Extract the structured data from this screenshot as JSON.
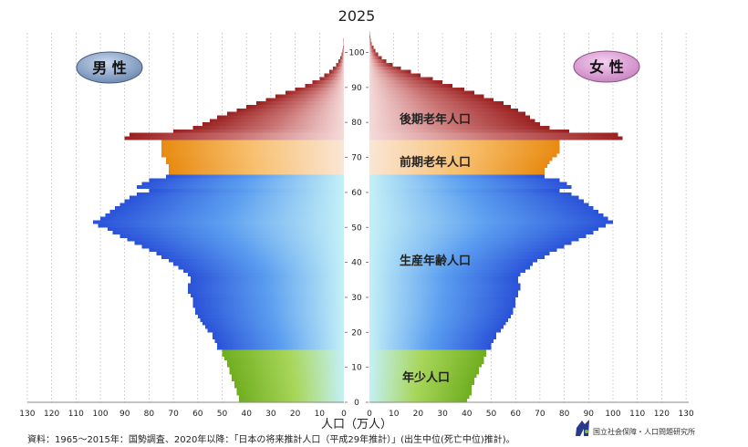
{
  "chart_data": {
    "type": "population-pyramid",
    "title": "2025",
    "xlabel": "人口（万人）",
    "x_ticks": [
      130,
      120,
      110,
      100,
      90,
      80,
      70,
      60,
      50,
      40,
      30,
      20,
      10,
      0
    ],
    "y_ticks": [
      0,
      10,
      20,
      30,
      40,
      50,
      60,
      70,
      80,
      90,
      100
    ],
    "xlim": [
      0,
      130
    ],
    "ylim": [
      0,
      105
    ],
    "male_label": "男 性",
    "female_label": "女 性",
    "age_groups": [
      {
        "name": "年少人口",
        "min_age": 0,
        "max_age": 14,
        "color": "#8cc63f"
      },
      {
        "name": "生産年齢人口",
        "min_age": 15,
        "max_age": 64,
        "color": "#3366ee"
      },
      {
        "name": "前期老年人口",
        "min_age": 65,
        "max_age": 74,
        "color": "#f0a030"
      },
      {
        "name": "後期老年人口",
        "min_age": 75,
        "max_age": 105,
        "color": "#a83232"
      }
    ],
    "ages": [
      0,
      1,
      2,
      3,
      4,
      5,
      6,
      7,
      8,
      9,
      10,
      11,
      12,
      13,
      14,
      15,
      16,
      17,
      18,
      19,
      20,
      21,
      22,
      23,
      24,
      25,
      26,
      27,
      28,
      29,
      30,
      31,
      32,
      33,
      34,
      35,
      36,
      37,
      38,
      39,
      40,
      41,
      42,
      43,
      44,
      45,
      46,
      47,
      48,
      49,
      50,
      51,
      52,
      53,
      54,
      55,
      56,
      57,
      58,
      59,
      60,
      61,
      62,
      63,
      64,
      65,
      66,
      67,
      68,
      69,
      70,
      71,
      72,
      73,
      74,
      75,
      76,
      77,
      78,
      79,
      80,
      81,
      82,
      83,
      84,
      85,
      86,
      87,
      88,
      89,
      90,
      91,
      92,
      93,
      94,
      95,
      96,
      97,
      98,
      99,
      100,
      101,
      102,
      103,
      104,
      105
    ],
    "male": [
      43,
      43,
      44,
      44,
      45,
      45,
      46,
      46,
      47,
      47,
      48,
      48,
      49,
      50,
      50,
      52,
      52,
      53,
      54,
      54,
      56,
      57,
      58,
      59,
      60,
      61,
      61,
      62,
      62,
      62,
      63,
      64,
      64,
      64,
      63,
      63,
      64,
      66,
      68,
      70,
      72,
      75,
      77,
      80,
      83,
      86,
      89,
      92,
      95,
      97,
      101,
      103,
      100,
      98,
      96,
      94,
      92,
      90,
      88,
      85,
      80,
      85,
      83,
      80,
      73,
      72,
      72,
      72,
      73,
      73,
      75,
      75,
      75,
      75,
      75,
      90,
      88,
      70,
      62,
      58,
      55,
      52,
      48,
      44,
      40,
      36,
      32,
      28,
      24,
      20,
      16,
      13,
      10,
      8,
      6,
      4.5,
      3.2,
      2.2,
      1.5,
      1,
      0.6,
      0.4,
      0.25,
      0.15,
      0.08,
      0.04
    ],
    "female": [
      40,
      41,
      42,
      42,
      42,
      43,
      43,
      44,
      45,
      45,
      46,
      47,
      47,
      48,
      48,
      50,
      50,
      51,
      52,
      52,
      54,
      55,
      56,
      57,
      58,
      59,
      59,
      60,
      60,
      60,
      61,
      61,
      62,
      62,
      61,
      61,
      62,
      64,
      66,
      67,
      69,
      72,
      74,
      77,
      80,
      83,
      86,
      89,
      92,
      94,
      97,
      100,
      98,
      96,
      94,
      92,
      90,
      88,
      86,
      83,
      78,
      83,
      81,
      78,
      72,
      72,
      72,
      73,
      74,
      75,
      77,
      78,
      78,
      78,
      78,
      104,
      102,
      82,
      74,
      70,
      68,
      66,
      64,
      61,
      58,
      55,
      51,
      47,
      43,
      39,
      34,
      30,
      26,
      21,
      17,
      13,
      9.5,
      7,
      5,
      3.5,
      2.4,
      1.6,
      1,
      0.6,
      0.35,
      0.2
    ]
  },
  "footer": {
    "source": "資料：1965～2015年：国勢調査、2020年以降：「日本の将来推計人口（平成29年推計）」(出生中位(死亡中位)推計)。",
    "logo_text": "国立社会保障・人口問題研究所"
  },
  "colors": {
    "young": "#8cc63f",
    "working": "#3366ee",
    "early_elderly": "#f0a030",
    "late_elderly": "#a83232"
  }
}
